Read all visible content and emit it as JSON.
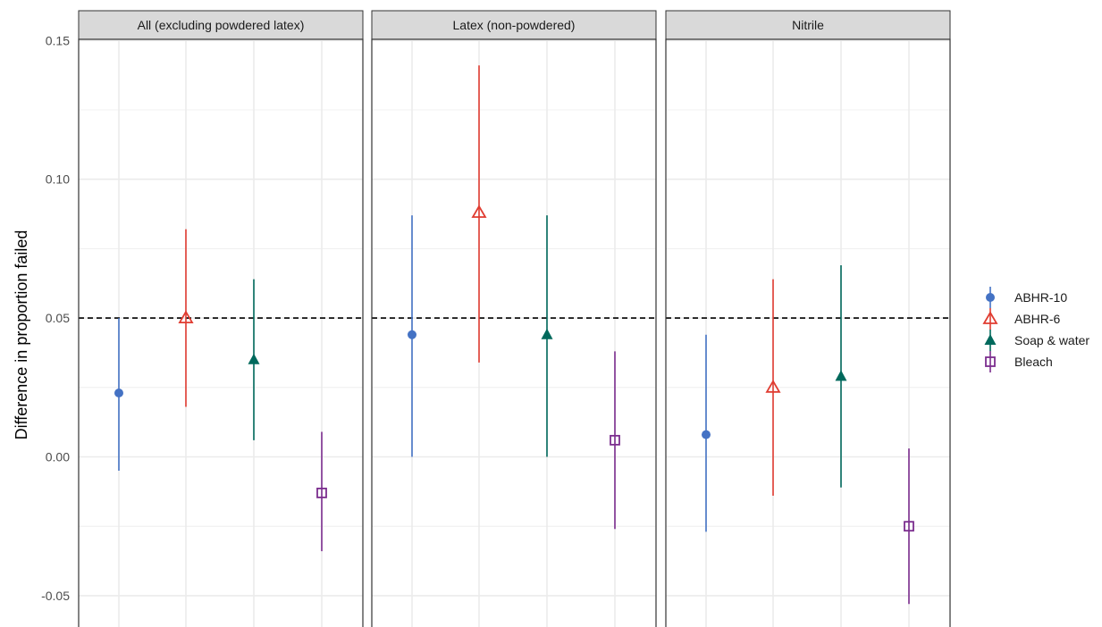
{
  "chart_data": {
    "type": "scatter",
    "subtype": "point-range",
    "title": "",
    "xlabel": "",
    "ylabel": "Difference in proportion failed",
    "ylim": [
      -0.055,
      0.16
    ],
    "yticks": [
      "-0.05",
      "0.00",
      "0.05",
      "0.10",
      "0.15"
    ],
    "ytick_values": [
      -0.05,
      0.0,
      0.05,
      0.1,
      0.15
    ],
    "reference_line": {
      "y": 0.05,
      "style": "dashed"
    },
    "grid": true,
    "legend_position": "right",
    "series": [
      {
        "name": "ABHR-10",
        "color": "#4472C4",
        "marker": "filled-circle"
      },
      {
        "name": "ABHR-6",
        "color": "#E03C31",
        "marker": "open-triangle"
      },
      {
        "name": "Soap & water",
        "color": "#00695C",
        "marker": "filled-triangle"
      },
      {
        "name": "Bleach",
        "color": "#7B2D8E",
        "marker": "open-square"
      }
    ],
    "panels": [
      {
        "title": "All (excluding powdered latex)",
        "points": [
          {
            "series": "ABHR-10",
            "y": 0.023,
            "lo": -0.005,
            "hi": 0.05
          },
          {
            "series": "ABHR-6",
            "y": 0.05,
            "lo": 0.018,
            "hi": 0.082
          },
          {
            "series": "Soap & water",
            "y": 0.035,
            "lo": 0.006,
            "hi": 0.064
          },
          {
            "series": "Bleach",
            "y": -0.013,
            "lo": -0.034,
            "hi": 0.009
          }
        ]
      },
      {
        "title": "Latex (non-powdered)",
        "points": [
          {
            "series": "ABHR-10",
            "y": 0.044,
            "lo": 0.0,
            "hi": 0.087
          },
          {
            "series": "ABHR-6",
            "y": 0.088,
            "lo": 0.034,
            "hi": 0.141
          },
          {
            "series": "Soap & water",
            "y": 0.044,
            "lo": 0.0,
            "hi": 0.087
          },
          {
            "series": "Bleach",
            "y": 0.006,
            "lo": -0.026,
            "hi": 0.038
          }
        ]
      },
      {
        "title": "Nitrile",
        "points": [
          {
            "series": "ABHR-10",
            "y": 0.008,
            "lo": -0.027,
            "hi": 0.044
          },
          {
            "series": "ABHR-6",
            "y": 0.025,
            "lo": -0.014,
            "hi": 0.064
          },
          {
            "series": "Soap & water",
            "y": 0.029,
            "lo": -0.011,
            "hi": 0.069
          },
          {
            "series": "Bleach",
            "y": -0.025,
            "lo": -0.053,
            "hi": 0.003
          }
        ]
      }
    ]
  }
}
